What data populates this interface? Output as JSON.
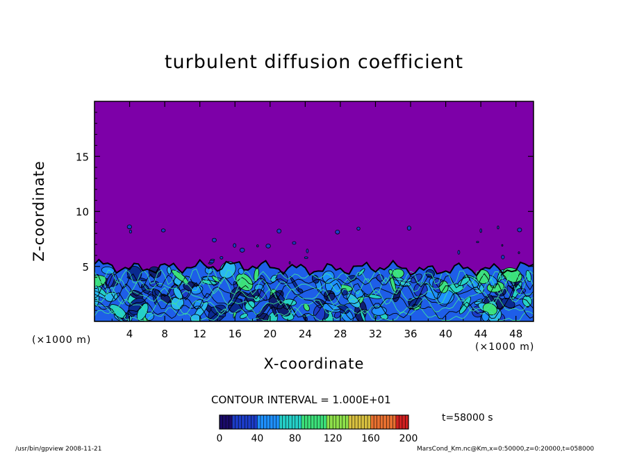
{
  "chart_data": {
    "type": "heatmap",
    "title": "turbulent diffusion coefficient",
    "xlabel": "X-coordinate",
    "ylabel": "Z-coordinate",
    "x_unit": "(×1000 m)",
    "xlim": [
      0,
      50
    ],
    "ylim": [
      0,
      20
    ],
    "x_ticks": [
      "4",
      "8",
      "12",
      "16",
      "20",
      "24",
      "28",
      "32",
      "36",
      "40",
      "44",
      "48"
    ],
    "y_ticks": [
      "5",
      "10",
      "15"
    ],
    "background_color": "#7d00a8",
    "boundary_layer_height": [
      5.2,
      4.8,
      4.9,
      5.0,
      5.1,
      4.9,
      4.7,
      4.8,
      5.0,
      4.6,
      4.8,
      4.7,
      5.0
    ],
    "colorbar": {
      "ticks": [
        "0",
        "40",
        "80",
        "120",
        "160",
        "200"
      ],
      "min": 0,
      "max": 200,
      "colors": [
        "#1a0a6a",
        "#1c3cc8",
        "#1e90ff",
        "#25d0c8",
        "#3ce07a",
        "#8ee04a",
        "#d8c040",
        "#e87030",
        "#d02020"
      ]
    },
    "contour_interval": "CONTOUR INTERVAL = 1.000E+01",
    "time_label": "t=58000  s"
  },
  "footer": {
    "left": "/usr/bin/gpview   2008-11-21",
    "right": "MarsCond_Km.nc@Km,x=0:50000,z=0:20000,t=058000"
  }
}
